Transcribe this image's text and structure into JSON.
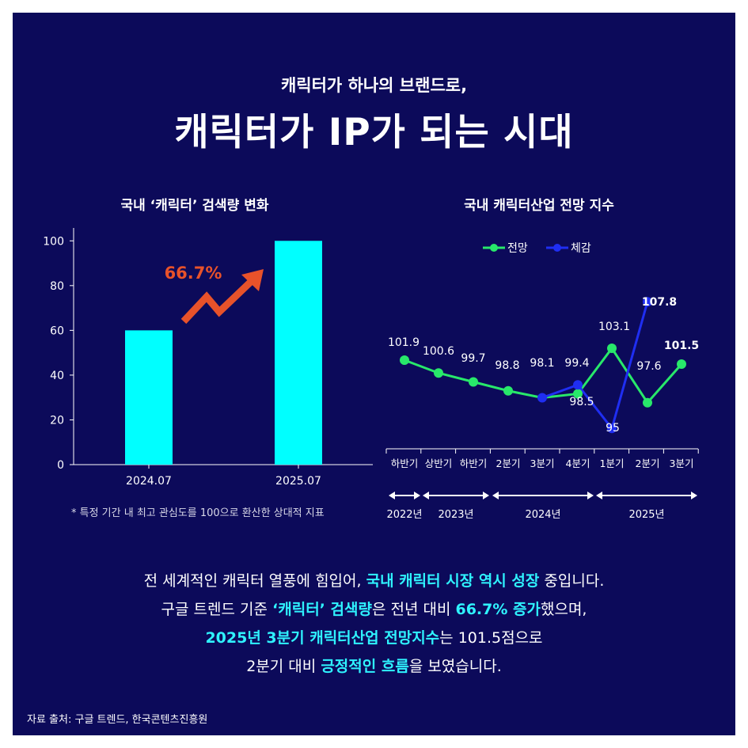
{
  "header": {
    "subtitle": "캐릭터가 하나의 브랜드로,",
    "title": "캐릭터가 IP가 되는 시대"
  },
  "colors": {
    "background": "#0c0a5a",
    "bar": "#00ffff",
    "arrow": "#e8522a",
    "series_forecast": "#28e86a",
    "series_actual": "#1f2ef2",
    "highlight": "#2ff3ff"
  },
  "chart_data": [
    {
      "type": "bar",
      "title": "국내 ‘캐릭터’ 검색량 변화",
      "categories": [
        "2024.07",
        "2025.07"
      ],
      "values": [
        60,
        100
      ],
      "ylim": [
        0,
        110
      ],
      "yticks": [
        0,
        20,
        40,
        60,
        80,
        100
      ],
      "annotation": "66.7%",
      "grid": false,
      "footnote": "* 특정 기간 내 최고 관심도를 100으로 환산한 상대적 지표"
    },
    {
      "type": "line",
      "title": "국내 캐릭터산업 전망 지수",
      "categories": [
        "하반기",
        "상반기",
        "하반기",
        "2분기",
        "3분기",
        "4분기",
        "1분기",
        "2분기",
        "3분기"
      ],
      "year_groups": [
        {
          "label": "2022년",
          "start": 0,
          "end": 0
        },
        {
          "label": "2023년",
          "start": 1,
          "end": 2
        },
        {
          "label": "2024년",
          "start": 3,
          "end": 5
        },
        {
          "label": "2025년",
          "start": 6,
          "end": 8
        }
      ],
      "series": [
        {
          "name": "전망",
          "values": [
            101.9,
            100.6,
            99.7,
            98.8,
            98.1,
            98.5,
            103.1,
            97.6,
            101.5
          ]
        },
        {
          "name": "체감",
          "values": [
            null,
            null,
            null,
            null,
            98.1,
            99.4,
            95,
            107.8,
            null
          ]
        }
      ],
      "labels": [
        {
          "text": "101.9",
          "bold": false
        },
        {
          "text": "100.6",
          "bold": false
        },
        {
          "text": "99.7",
          "bold": false
        },
        {
          "text": "98.8",
          "bold": false
        },
        {
          "text": "98.1",
          "bold": false
        },
        {
          "text": "99.4",
          "bold": false
        },
        {
          "text": "98.5",
          "bold": false
        },
        {
          "text": "103.1",
          "bold": false
        },
        {
          "text": "95",
          "bold": false
        },
        {
          "text": "107.8",
          "bold": true
        },
        {
          "text": "97.6",
          "bold": false
        },
        {
          "text": "101.5",
          "bold": true
        }
      ],
      "legend": "top"
    }
  ],
  "body": {
    "line1_a": "전 세계적인 캐릭터 열풍에 힘입어, ",
    "line1_b": "국내 캐릭터 시장 역시 성장",
    "line1_c": " 중입니다.",
    "line2_a": "구글 트렌드 기준 ",
    "line2_b": "‘캐릭터’ 검색량",
    "line2_c": "은 전년 대비 ",
    "line2_d": "66.7% 증가",
    "line2_e": "했으며,",
    "line3_a": "2025년 3분기 캐릭터산업 전망지수",
    "line3_b": "는 101.5점으로",
    "line4_a": "2분기 대비 ",
    "line4_b": "긍정적인 흐름",
    "line4_c": "을 보였습니다."
  },
  "source": "자료 출처: 구글 트렌드, 한국콘텐츠진흥원"
}
